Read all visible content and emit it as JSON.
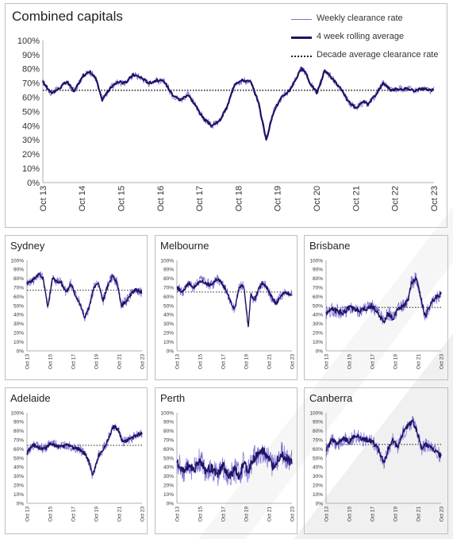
{
  "colors": {
    "weekly": "#7b6fd1",
    "rolling": "#1c1464",
    "decade": "#222222",
    "border": "#bfbfbf"
  },
  "main": {
    "title": "Combined capitals",
    "legend": {
      "weekly": "Weekly clearance rate",
      "rolling": "4 week rolling average",
      "decade": "Decade average clearance rate"
    }
  },
  "chart_data": [
    {
      "type": "line",
      "title": "Combined capitals",
      "ylim": [
        0,
        100
      ],
      "y_ticks": [
        "0%",
        "10%",
        "20%",
        "30%",
        "40%",
        "50%",
        "60%",
        "70%",
        "80%",
        "90%",
        "100%"
      ],
      "x_ticks": [
        "Oct 13",
        "Oct 14",
        "Oct 15",
        "Oct 16",
        "Oct 17",
        "Oct 18",
        "Oct 19",
        "Oct 20",
        "Oct 21",
        "Oct 22",
        "Oct 23"
      ],
      "decade_average": 65,
      "series": [
        {
          "name": "4 week rolling average",
          "x": [
            2013.79,
            2014.0,
            2014.2,
            2014.4,
            2014.6,
            2014.8,
            2015.0,
            2015.15,
            2015.3,
            2015.5,
            2015.7,
            2015.9,
            2016.1,
            2016.3,
            2016.5,
            2016.7,
            2016.9,
            2017.1,
            2017.3,
            2017.5,
            2017.7,
            2017.9,
            2018.1,
            2018.3,
            2018.5,
            2018.7,
            2018.9,
            2019.1,
            2019.3,
            2019.5,
            2019.7,
            2019.9,
            2020.1,
            2020.2,
            2020.3,
            2020.4,
            2020.5,
            2020.6,
            2020.8,
            2021.0,
            2021.2,
            2021.4,
            2021.6,
            2021.8,
            2022.0,
            2022.1,
            2022.3,
            2022.5,
            2022.7,
            2022.9,
            2023.1,
            2023.3,
            2023.5,
            2023.7,
            2023.79
          ],
          "y": [
            71,
            63,
            66,
            71,
            64,
            75,
            78,
            73,
            58,
            66,
            71,
            70,
            76,
            74,
            70,
            72,
            71,
            62,
            58,
            62,
            54,
            45,
            40,
            43,
            53,
            70,
            72,
            71,
            57,
            30,
            51,
            60,
            65,
            70,
            75,
            80,
            78,
            71,
            63,
            79,
            73,
            66,
            57,
            52,
            57,
            55,
            62,
            70,
            65,
            66,
            66,
            65,
            66,
            65,
            65
          ]
        }
      ]
    },
    {
      "type": "line",
      "title": "Sydney",
      "ylim": [
        0,
        100
      ],
      "y_ticks": [
        "0%",
        "10%",
        "20%",
        "30%",
        "40%",
        "50%",
        "60%",
        "70%",
        "80%",
        "90%",
        "100%"
      ],
      "x_ticks": [
        "Oct 13",
        "Oct 15",
        "Oct 17",
        "Oct 19",
        "Oct 21",
        "Oct 23"
      ],
      "decade_average": 67,
      "series": [
        {
          "name": "4 week rolling average",
          "x": [
            2013.79,
            2014.3,
            2014.8,
            2015.2,
            2015.6,
            2016.0,
            2016.4,
            2016.8,
            2017.2,
            2017.6,
            2018.0,
            2018.4,
            2018.8,
            2019.2,
            2019.6,
            2020.0,
            2020.4,
            2020.8,
            2021.2,
            2021.6,
            2022.0,
            2022.4,
            2022.8,
            2023.2,
            2023.79
          ],
          "y": [
            75,
            78,
            85,
            80,
            48,
            80,
            77,
            75,
            64,
            75,
            62,
            52,
            37,
            48,
            70,
            75,
            55,
            72,
            82,
            76,
            50,
            55,
            62,
            68,
            65
          ]
        }
      ]
    },
    {
      "type": "line",
      "title": "Melbourne",
      "ylim": [
        0,
        100
      ],
      "y_ticks": [
        "0%",
        "10%",
        "20%",
        "30%",
        "40%",
        "50%",
        "60%",
        "70%",
        "80%",
        "90%",
        "100%"
      ],
      "x_ticks": [
        "Oct 13",
        "Oct 15",
        "Oct 17",
        "Oct 19",
        "Oct 21",
        "Oct 23"
      ],
      "decade_average": 65,
      "series": [
        {
          "name": "4 week rolling average",
          "x": [
            2013.79,
            2014.3,
            2014.8,
            2015.3,
            2015.8,
            2016.3,
            2016.8,
            2017.3,
            2017.8,
            2018.3,
            2018.8,
            2019.2,
            2019.6,
            2020.0,
            2020.2,
            2020.5,
            2020.9,
            2021.2,
            2021.6,
            2022.0,
            2022.4,
            2022.8,
            2023.2,
            2023.79
          ],
          "y": [
            70,
            65,
            75,
            70,
            78,
            75,
            72,
            80,
            73,
            60,
            45,
            70,
            72,
            25,
            62,
            55,
            68,
            75,
            70,
            60,
            52,
            60,
            65,
            62
          ]
        }
      ]
    },
    {
      "type": "line",
      "title": "Brisbane",
      "ylim": [
        0,
        100
      ],
      "y_ticks": [
        "0%",
        "10%",
        "20%",
        "30%",
        "40%",
        "50%",
        "60%",
        "70%",
        "80%",
        "90%",
        "100%"
      ],
      "x_ticks": [
        "Oct 13",
        "Oct 15",
        "Oct 17",
        "Oct 19",
        "Oct 21",
        "Oct 23"
      ],
      "decade_average": 48,
      "series": [
        {
          "name": "4 week rolling average",
          "x": [
            2013.79,
            2014.3,
            2014.8,
            2015.3,
            2015.8,
            2016.3,
            2016.8,
            2017.3,
            2017.8,
            2018.3,
            2018.8,
            2019.2,
            2019.6,
            2020.0,
            2020.5,
            2020.9,
            2021.2,
            2021.6,
            2022.0,
            2022.4,
            2022.8,
            2023.2,
            2023.79
          ],
          "y": [
            42,
            46,
            44,
            42,
            48,
            46,
            44,
            47,
            50,
            42,
            32,
            42,
            35,
            45,
            50,
            55,
            75,
            80,
            60,
            38,
            50,
            58,
            63
          ]
        }
      ]
    },
    {
      "type": "line",
      "title": "Adelaide",
      "ylim": [
        0,
        100
      ],
      "y_ticks": [
        "0%",
        "10%",
        "20%",
        "30%",
        "40%",
        "50%",
        "60%",
        "70%",
        "80%",
        "90%",
        "100%"
      ],
      "x_ticks": [
        "Oct 13",
        "Oct 15",
        "Oct 17",
        "Oct 19",
        "Oct 21",
        "Oct 23"
      ],
      "decade_average": 64,
      "series": [
        {
          "name": "4 week rolling average",
          "x": [
            2013.79,
            2014.3,
            2014.8,
            2015.3,
            2015.8,
            2016.3,
            2016.8,
            2017.3,
            2017.8,
            2018.3,
            2018.8,
            2019.2,
            2019.5,
            2020.0,
            2020.5,
            2020.9,
            2021.3,
            2021.7,
            2022.1,
            2022.5,
            2022.9,
            2023.3,
            2023.79
          ],
          "y": [
            55,
            65,
            62,
            60,
            66,
            64,
            62,
            65,
            62,
            60,
            55,
            45,
            30,
            52,
            62,
            72,
            85,
            82,
            68,
            70,
            72,
            75,
            78
          ]
        }
      ]
    },
    {
      "type": "line",
      "title": "Perth",
      "ylim": [
        0,
        100
      ],
      "y_ticks": [
        "0%",
        "10%",
        "20%",
        "30%",
        "40%",
        "50%",
        "60%",
        "70%",
        "80%",
        "90%",
        "100%"
      ],
      "x_ticks": [
        "Oct 13",
        "Oct 15",
        "Oct 17",
        "Oct 19",
        "Oct 21",
        "Oct 23"
      ],
      "series": [
        {
          "name": "4 week rolling average",
          "x": [
            2013.79,
            2014.3,
            2014.8,
            2015.3,
            2015.8,
            2016.3,
            2016.8,
            2017.3,
            2017.8,
            2018.3,
            2018.8,
            2019.2,
            2019.6,
            2020.0,
            2020.5,
            2020.9,
            2021.3,
            2021.7,
            2022.1,
            2022.5,
            2022.9,
            2023.3,
            2023.79
          ],
          "y": [
            45,
            35,
            42,
            38,
            48,
            35,
            40,
            30,
            42,
            28,
            38,
            30,
            45,
            35,
            50,
            55,
            58,
            52,
            40,
            48,
            55,
            50,
            45
          ]
        }
      ]
    },
    {
      "type": "line",
      "title": "Canberra",
      "ylim": [
        0,
        100
      ],
      "y_ticks": [
        "0%",
        "10%",
        "20%",
        "30%",
        "40%",
        "50%",
        "60%",
        "70%",
        "80%",
        "90%",
        "100%"
      ],
      "x_ticks": [
        "Oct 13",
        "Oct 15",
        "Oct 17",
        "Oct 19",
        "Oct 21",
        "Oct 23"
      ],
      "decade_average": 65,
      "series": [
        {
          "name": "4 week rolling average",
          "x": [
            2013.79,
            2014.3,
            2014.8,
            2015.3,
            2015.8,
            2016.3,
            2016.8,
            2017.3,
            2017.8,
            2018.3,
            2018.8,
            2019.2,
            2019.6,
            2020.0,
            2020.5,
            2020.9,
            2021.3,
            2021.7,
            2022.1,
            2022.5,
            2022.9,
            2023.3,
            2023.79
          ],
          "y": [
            58,
            70,
            65,
            72,
            68,
            75,
            72,
            70,
            68,
            60,
            45,
            60,
            70,
            62,
            78,
            86,
            90,
            80,
            60,
            65,
            62,
            58,
            52
          ]
        }
      ]
    }
  ]
}
